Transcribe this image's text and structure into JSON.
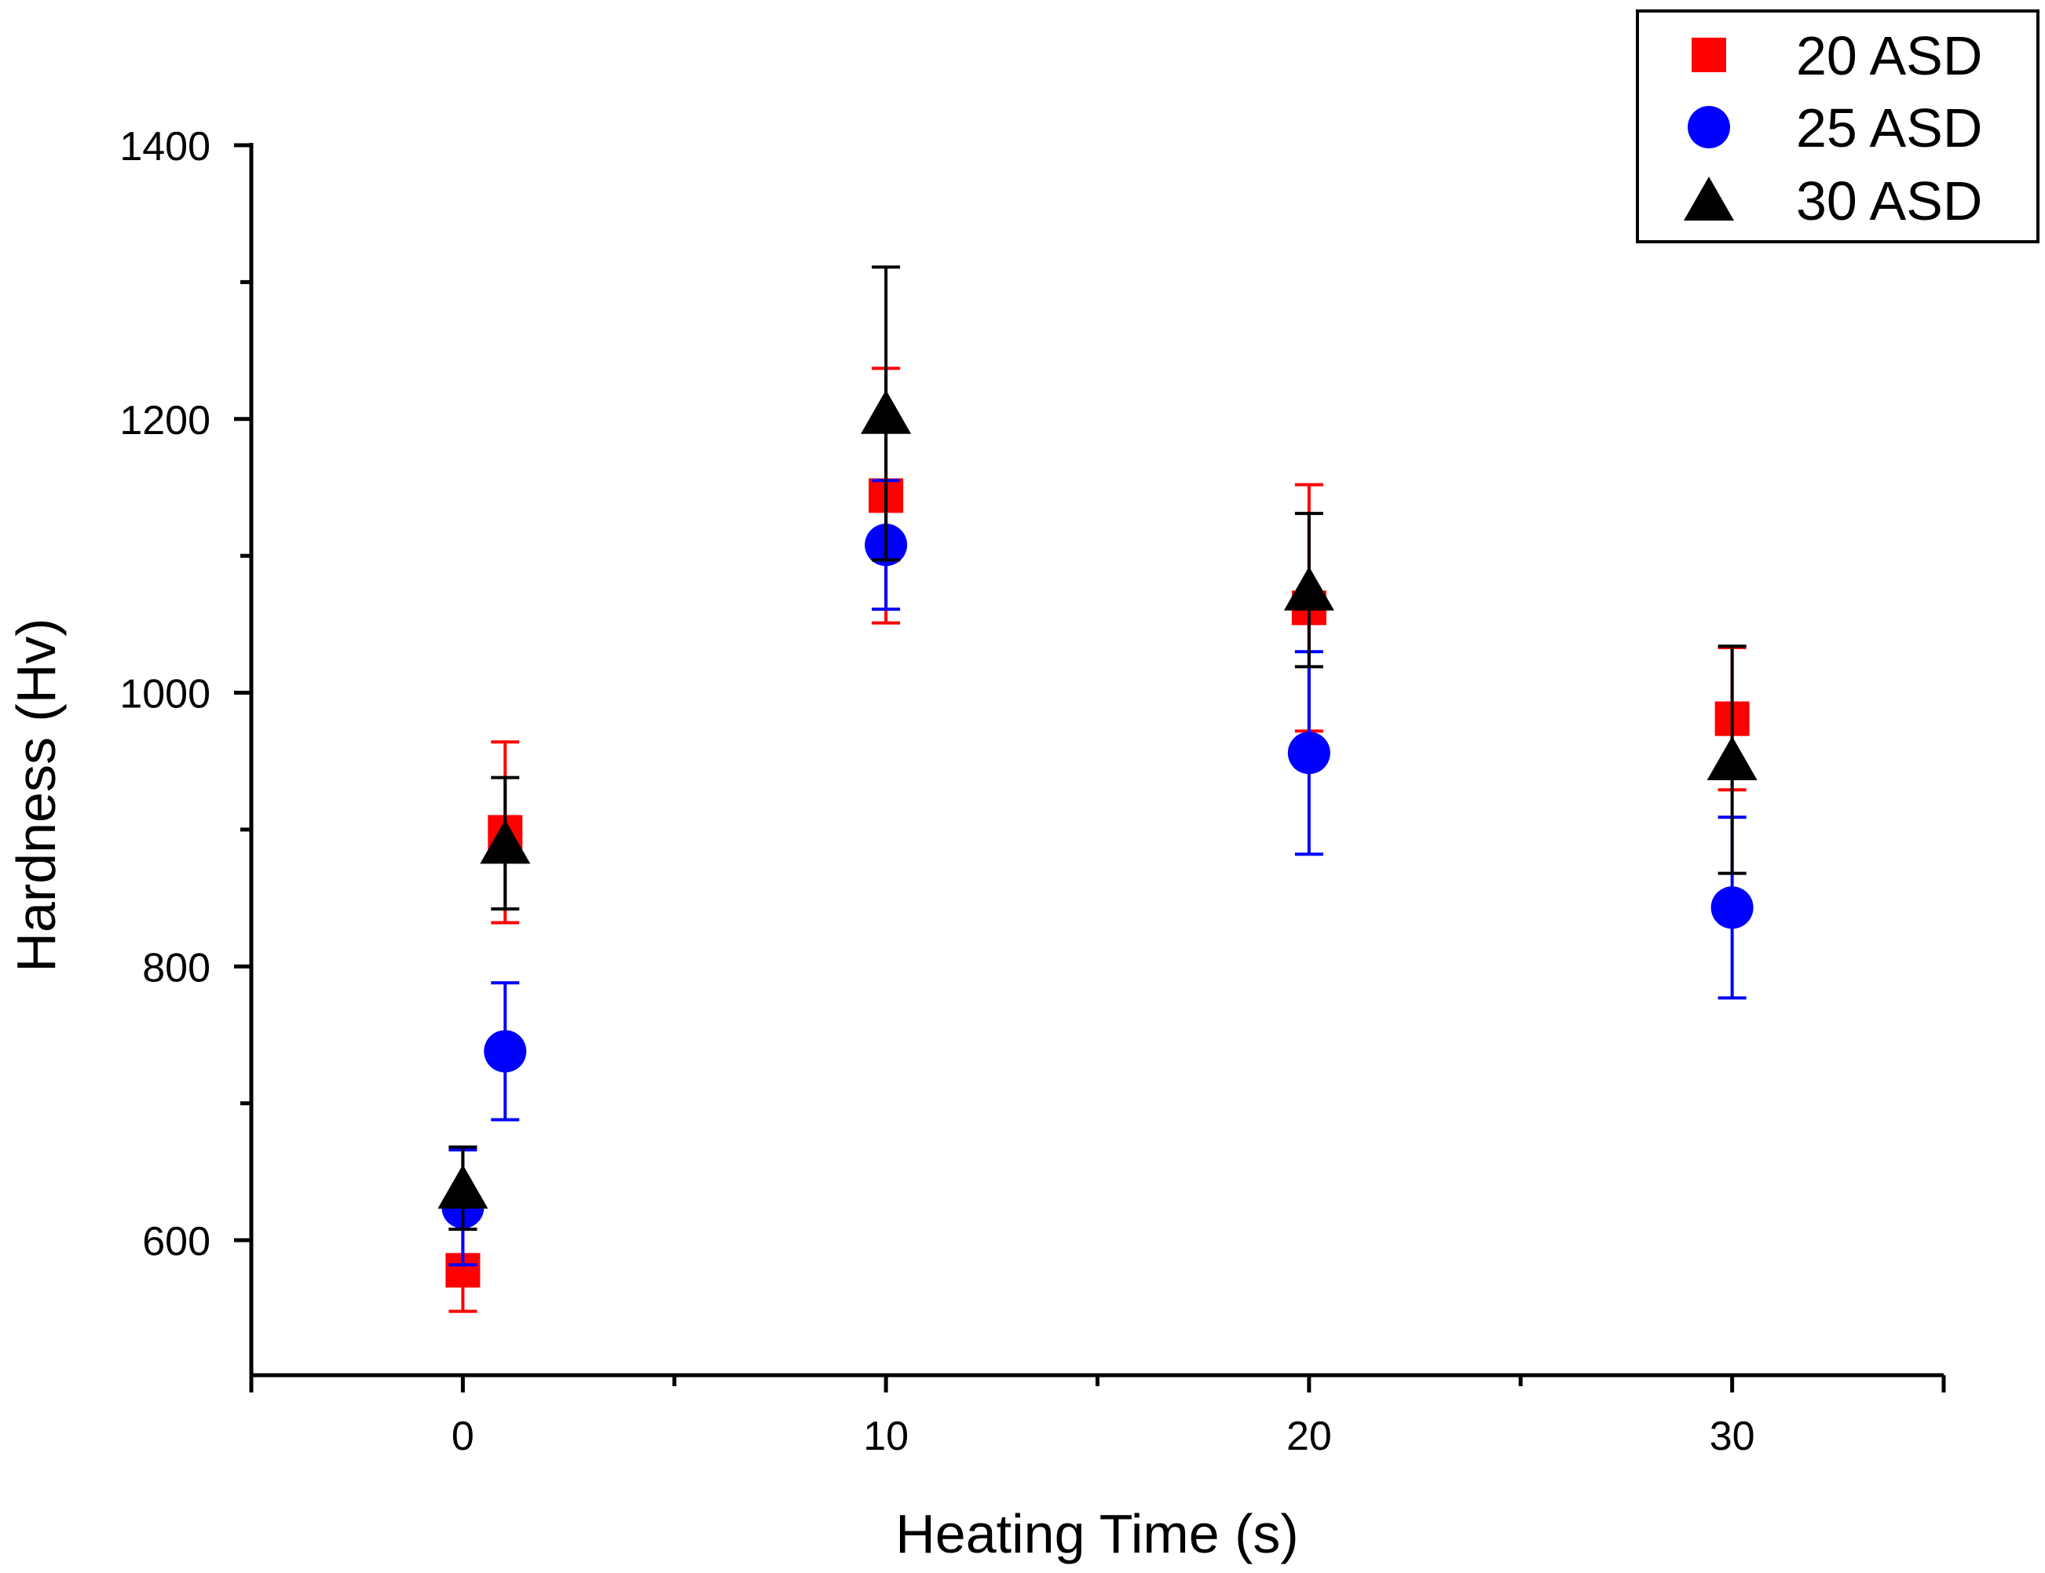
{
  "chart_data": {
    "type": "scatter",
    "title": "",
    "xlabel": "Heating Time (s)",
    "ylabel": "Hardness (Hv)",
    "xlim": [
      -5,
      35
    ],
    "ylim": [
      500,
      1400
    ],
    "x_ticks": [
      0,
      10,
      20,
      30
    ],
    "x_tick_labels": [
      "0",
      "10",
      "20",
      "30"
    ],
    "x_minor_ticks": [
      5,
      15,
      25
    ],
    "y_ticks": [
      600,
      800,
      1000,
      1200,
      1400
    ],
    "y_tick_labels": [
      "600",
      "800",
      "1000",
      "1200",
      "1400"
    ],
    "y_minor_ticks": [
      700,
      900,
      1100,
      1300
    ],
    "grid": false,
    "legend_position": "top-right",
    "series": [
      {
        "name": "20 ASD",
        "marker": "square",
        "color": "#ff0000",
        "points": [
          {
            "x": 0,
            "y": 578,
            "err": 30
          },
          {
            "x": 1,
            "y": 898,
            "err": 66
          },
          {
            "x": 10,
            "y": 1144,
            "err": 93
          },
          {
            "x": 20,
            "y": 1062,
            "err": 90
          },
          {
            "x": 30,
            "y": 981,
            "err": 52
          }
        ]
      },
      {
        "name": "25 ASD",
        "marker": "circle",
        "color": "#0000ff",
        "points": [
          {
            "x": 0,
            "y": 624,
            "err": 42
          },
          {
            "x": 1,
            "y": 738,
            "err": 50
          },
          {
            "x": 10,
            "y": 1108,
            "err": 47
          },
          {
            "x": 20,
            "y": 956,
            "err": 74
          },
          {
            "x": 30,
            "y": 843,
            "err": 66
          }
        ]
      },
      {
        "name": "30 ASD",
        "marker": "triangle",
        "color": "#000000",
        "points": [
          {
            "x": 0,
            "y": 638,
            "err": 30
          },
          {
            "x": 1,
            "y": 890,
            "err": 48
          },
          {
            "x": 10,
            "y": 1204,
            "err": 107
          },
          {
            "x": 20,
            "y": 1075,
            "err": 56
          },
          {
            "x": 30,
            "y": 951,
            "err": 83
          }
        ]
      }
    ]
  }
}
